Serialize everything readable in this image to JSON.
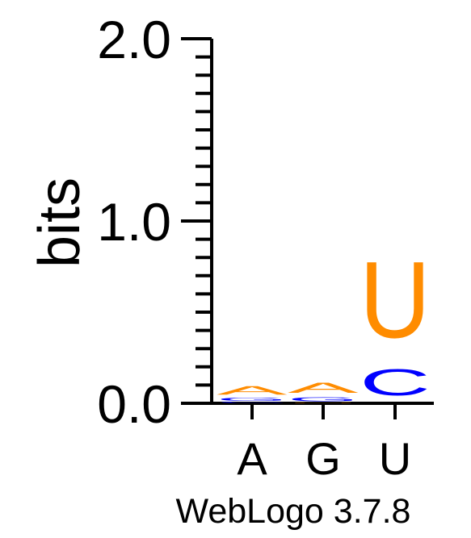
{
  "chart_data": {
    "type": "sequence-logo",
    "ylabel": "bits",
    "ylim": [
      0,
      2
    ],
    "y_ticks": [
      "0.0",
      "1.0",
      "2.0"
    ],
    "y_tick_values": [
      0,
      1,
      2
    ],
    "minor_tick_step": 0.1,
    "categories": [
      "A",
      "G",
      "U"
    ],
    "colors": {
      "A": "#ff8c00",
      "G": "#0000ff",
      "C": "#0000ff",
      "U": "#ff8c00"
    },
    "stacks": [
      {
        "position": "A",
        "letters": [
          {
            "char": "C",
            "bits": 0.008
          },
          {
            "char": "G",
            "bits": 0.025
          },
          {
            "char": "A",
            "bits": 0.075
          }
        ]
      },
      {
        "position": "G",
        "letters": [
          {
            "char": "U",
            "bits": 0.005
          },
          {
            "char": "G",
            "bits": 0.035
          },
          {
            "char": "A",
            "bits": 0.09
          }
        ]
      },
      {
        "position": "U",
        "letters": [
          {
            "char": "C",
            "bits": 0.23
          },
          {
            "char": "U",
            "bits": 0.67
          }
        ]
      }
    ]
  },
  "footer": {
    "credit": "WebLogo 3.7.8"
  }
}
